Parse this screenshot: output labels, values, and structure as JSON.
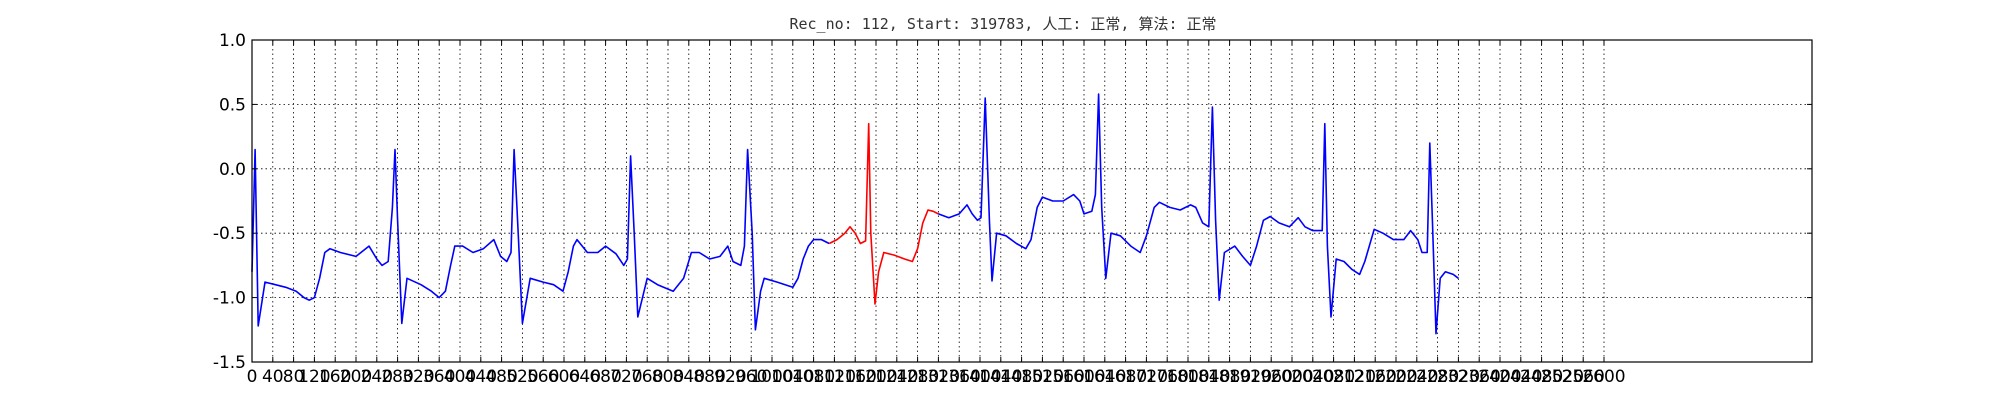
{
  "chart_data": {
    "type": "line",
    "title": "Rec_no: 112, Start: 319783, 人工: 正常, 算法: 正常",
    "xlabel": "",
    "ylabel": "",
    "xlim": [
      0,
      3000
    ],
    "ylim": [
      -1.5,
      1.0
    ],
    "grid": true,
    "x_ticks": [
      0,
      40,
      80,
      120,
      160,
      200,
      240,
      280,
      320,
      360,
      400,
      440,
      480,
      520,
      560,
      600,
      640,
      680,
      720,
      760,
      800,
      840,
      880,
      920,
      960,
      1000,
      1040,
      1080,
      1120,
      1160,
      1200,
      1240,
      1280,
      1320,
      1360,
      1400,
      1440,
      1480,
      1520,
      1560,
      1600,
      1640,
      1680,
      1720,
      1760,
      1800,
      1840,
      1880,
      1920,
      1960,
      2000,
      2040,
      2080,
      2120,
      2160,
      2200,
      2240,
      2280,
      2320,
      2360,
      2400,
      2440,
      2480,
      2520,
      2560,
      2600
    ],
    "y_ticks": [
      "1.0",
      "0.5",
      "0.0",
      "-0.5",
      "-1.0",
      "-1.5"
    ],
    "series": [
      {
        "color": "#0000ff",
        "points": [
          [
            0,
            -0.8
          ],
          [
            6,
            0.15
          ],
          [
            12,
            -1.22
          ],
          [
            25,
            -0.88
          ],
          [
            45,
            -0.9
          ],
          [
            65,
            -0.92
          ],
          [
            85,
            -0.95
          ],
          [
            100,
            -1.0
          ],
          [
            110,
            -1.02
          ],
          [
            120,
            -1.0
          ],
          [
            130,
            -0.85
          ],
          [
            140,
            -0.65
          ],
          [
            150,
            -0.62
          ],
          [
            170,
            -0.65
          ],
          [
            200,
            -0.68
          ],
          [
            225,
            -0.6
          ],
          [
            240,
            -0.7
          ],
          [
            250,
            -0.75
          ],
          [
            262,
            -0.72
          ],
          [
            270,
            -0.3
          ],
          [
            275,
            0.15
          ],
          [
            280,
            -0.4
          ],
          [
            288,
            -1.2
          ],
          [
            298,
            -0.85
          ],
          [
            325,
            -0.9
          ],
          [
            345,
            -0.95
          ],
          [
            360,
            -1.0
          ],
          [
            372,
            -0.95
          ],
          [
            382,
            -0.75
          ],
          [
            390,
            -0.6
          ],
          [
            405,
            -0.6
          ],
          [
            425,
            -0.65
          ],
          [
            445,
            -0.62
          ],
          [
            465,
            -0.55
          ],
          [
            478,
            -0.68
          ],
          [
            490,
            -0.72
          ],
          [
            498,
            -0.65
          ],
          [
            504,
            0.15
          ],
          [
            512,
            -0.5
          ],
          [
            520,
            -1.2
          ],
          [
            535,
            -0.85
          ],
          [
            560,
            -0.88
          ],
          [
            580,
            -0.9
          ],
          [
            598,
            -0.95
          ],
          [
            608,
            -0.8
          ],
          [
            618,
            -0.6
          ],
          [
            625,
            -0.55
          ],
          [
            645,
            -0.65
          ],
          [
            665,
            -0.65
          ],
          [
            680,
            -0.6
          ],
          [
            700,
            -0.66
          ],
          [
            715,
            -0.75
          ],
          [
            722,
            -0.7
          ],
          [
            728,
            0.1
          ],
          [
            735,
            -0.5
          ],
          [
            742,
            -1.15
          ],
          [
            760,
            -0.85
          ],
          [
            780,
            -0.9
          ],
          [
            810,
            -0.95
          ],
          [
            830,
            -0.85
          ],
          [
            845,
            -0.65
          ],
          [
            860,
            -0.65
          ],
          [
            880,
            -0.7
          ],
          [
            900,
            -0.68
          ],
          [
            915,
            -0.6
          ],
          [
            925,
            -0.72
          ],
          [
            940,
            -0.75
          ],
          [
            947,
            -0.6
          ],
          [
            953,
            0.15
          ],
          [
            962,
            -0.5
          ],
          [
            968,
            -1.25
          ],
          [
            978,
            -0.95
          ],
          [
            985,
            -0.85
          ],
          [
            1010,
            -0.88
          ],
          [
            1040,
            -0.92
          ],
          [
            1050,
            -0.85
          ],
          [
            1060,
            -0.7
          ],
          [
            1070,
            -0.6
          ],
          [
            1080,
            -0.55
          ],
          [
            1095,
            -0.55
          ],
          [
            1110,
            -0.58
          ]
        ]
      },
      {
        "color": "#ff0000",
        "points": [
          [
            1110,
            -0.58
          ],
          [
            1125,
            -0.55
          ],
          [
            1140,
            -0.5
          ],
          [
            1150,
            -0.45
          ],
          [
            1160,
            -0.5
          ],
          [
            1170,
            -0.58
          ],
          [
            1180,
            -0.56
          ],
          [
            1186,
            0.35
          ],
          [
            1190,
            -0.5
          ],
          [
            1198,
            -1.05
          ],
          [
            1205,
            -0.8
          ],
          [
            1215,
            -0.65
          ],
          [
            1235,
            -0.67
          ],
          [
            1255,
            -0.7
          ],
          [
            1270,
            -0.72
          ],
          [
            1280,
            -0.62
          ],
          [
            1290,
            -0.42
          ],
          [
            1300,
            -0.32
          ],
          [
            1310,
            -0.33
          ],
          [
            1320,
            -0.35
          ]
        ]
      },
      {
        "color": "#0000ff",
        "points": [
          [
            1320,
            -0.35
          ],
          [
            1340,
            -0.38
          ],
          [
            1360,
            -0.35
          ],
          [
            1375,
            -0.28
          ],
          [
            1385,
            -0.35
          ],
          [
            1395,
            -0.4
          ],
          [
            1402,
            -0.38
          ],
          [
            1410,
            0.55
          ],
          [
            1418,
            -0.4
          ],
          [
            1423,
            -0.87
          ],
          [
            1432,
            -0.5
          ],
          [
            1450,
            -0.52
          ],
          [
            1470,
            -0.58
          ],
          [
            1488,
            -0.62
          ],
          [
            1498,
            -0.55
          ],
          [
            1510,
            -0.3
          ],
          [
            1520,
            -0.22
          ],
          [
            1540,
            -0.25
          ],
          [
            1560,
            -0.25
          ],
          [
            1580,
            -0.2
          ],
          [
            1592,
            -0.25
          ],
          [
            1600,
            -0.35
          ],
          [
            1615,
            -0.33
          ],
          [
            1622,
            -0.2
          ],
          [
            1628,
            0.58
          ],
          [
            1634,
            -0.3
          ],
          [
            1642,
            -0.85
          ],
          [
            1652,
            -0.5
          ],
          [
            1670,
            -0.52
          ],
          [
            1690,
            -0.6
          ],
          [
            1708,
            -0.65
          ],
          [
            1720,
            -0.52
          ],
          [
            1735,
            -0.3
          ],
          [
            1745,
            -0.26
          ],
          [
            1765,
            -0.3
          ],
          [
            1785,
            -0.32
          ],
          [
            1805,
            -0.28
          ],
          [
            1815,
            -0.3
          ],
          [
            1828,
            -0.42
          ],
          [
            1840,
            -0.45
          ],
          [
            1847,
            0.48
          ],
          [
            1853,
            -0.4
          ],
          [
            1860,
            -1.02
          ],
          [
            1870,
            -0.65
          ],
          [
            1890,
            -0.6
          ],
          [
            1905,
            -0.68
          ],
          [
            1920,
            -0.75
          ],
          [
            1932,
            -0.6
          ],
          [
            1945,
            -0.4
          ],
          [
            1958,
            -0.37
          ],
          [
            1975,
            -0.42
          ],
          [
            1995,
            -0.45
          ],
          [
            2012,
            -0.38
          ],
          [
            2025,
            -0.45
          ],
          [
            2040,
            -0.48
          ],
          [
            2058,
            -0.48
          ],
          [
            2063,
            0.35
          ],
          [
            2068,
            -0.6
          ],
          [
            2075,
            -1.15
          ],
          [
            2085,
            -0.7
          ],
          [
            2100,
            -0.72
          ],
          [
            2115,
            -0.78
          ],
          [
            2130,
            -0.82
          ],
          [
            2140,
            -0.72
          ],
          [
            2158,
            -0.47
          ],
          [
            2175,
            -0.5
          ],
          [
            2195,
            -0.55
          ],
          [
            2215,
            -0.55
          ],
          [
            2228,
            -0.48
          ],
          [
            2242,
            -0.55
          ],
          [
            2250,
            -0.65
          ],
          [
            2260,
            -0.65
          ],
          [
            2265,
            0.2
          ],
          [
            2270,
            -0.4
          ],
          [
            2277,
            -1.28
          ],
          [
            2285,
            -0.85
          ],
          [
            2295,
            -0.8
          ],
          [
            2310,
            -0.82
          ],
          [
            2320,
            -0.85
          ]
        ]
      }
    ]
  }
}
